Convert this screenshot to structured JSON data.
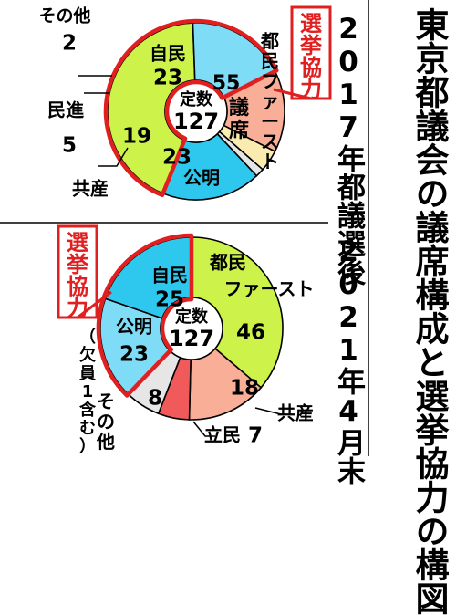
{
  "title": "東京都議会の議席構成と選挙協力の構図",
  "colors": {
    "tomin": "#cdf24a",
    "jimin": "#2ec8ee",
    "komei": "#7fdcf6",
    "kyosan": "#f9ae98",
    "minshin": "#faebb0",
    "rikken": "#f05a5a",
    "sonota": "#e6e6e6",
    "outline": "#e02020"
  },
  "chart_data": [
    {
      "type": "pie",
      "title": "2017年都議選後",
      "center_label": "定数",
      "center_value": "127",
      "cooperation_label": "選挙協力",
      "slices": [
        {
          "name": "都民ファースト",
          "value": 55,
          "color": "#cdf24a",
          "label": "都民ファースト",
          "unit": "議席"
        },
        {
          "name": "公明",
          "value": 23,
          "color": "#7fdcf6",
          "label": "公明"
        },
        {
          "name": "共産",
          "value": 19,
          "color": "#f9ae98",
          "label": "共産"
        },
        {
          "name": "民進",
          "value": 5,
          "color": "#faebb0",
          "label": "民進"
        },
        {
          "name": "その他",
          "value": 2,
          "color": "#e6e6e6",
          "label": "その他"
        },
        {
          "name": "自民",
          "value": 23,
          "color": "#2ec8ee",
          "label": "自民"
        }
      ],
      "cooperation": [
        "都民ファースト",
        "公明"
      ]
    },
    {
      "type": "pie",
      "title": "2021年4月末",
      "center_label": "定数",
      "center_value": "127",
      "cooperation_label": "選挙協力",
      "slices": [
        {
          "name": "都民ファースト",
          "value": 46,
          "color": "#cdf24a",
          "label": "都民ファースト"
        },
        {
          "name": "共産",
          "value": 18,
          "color": "#f9ae98",
          "label": "共産"
        },
        {
          "name": "立民",
          "value": 7,
          "color": "#f05a5a",
          "label": "立民"
        },
        {
          "name": "その他",
          "value": 8,
          "color": "#e6e6e6",
          "label": "その他",
          "note": "（欠員1含む）"
        },
        {
          "name": "公明",
          "value": 23,
          "color": "#7fdcf6",
          "label": "公明"
        },
        {
          "name": "自民",
          "value": 25,
          "color": "#2ec8ee",
          "label": "自民"
        }
      ],
      "cooperation": [
        "公明",
        "自民"
      ]
    }
  ]
}
